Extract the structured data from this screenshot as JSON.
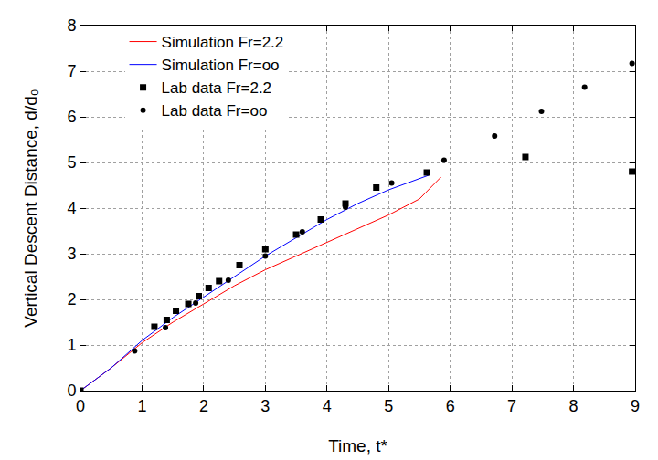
{
  "chart_data": {
    "type": "line",
    "x_label": "Time, t*",
    "y_label": "Vertical Descent Distance, d/d₀",
    "xlim": [
      0,
      9
    ],
    "ylim": [
      0,
      8
    ],
    "xticks": [
      0,
      1,
      2,
      3,
      4,
      5,
      6,
      7,
      8,
      9
    ],
    "yticks": [
      0,
      1,
      2,
      3,
      4,
      5,
      6,
      7,
      8
    ],
    "grid": true,
    "legend": "upper left",
    "series": [
      {
        "name": "Simulation Fr=2.2",
        "type": "line",
        "color": "#ff0000",
        "line_style": "solid",
        "x": [
          0,
          0.5,
          1,
          1.5,
          2,
          2.5,
          3,
          3.5,
          4,
          4.5,
          5,
          5.5,
          5.85
        ],
        "values": [
          0,
          0.5,
          1.05,
          1.5,
          1.9,
          2.3,
          2.65,
          2.95,
          3.25,
          3.55,
          3.85,
          4.2,
          4.68
        ]
      },
      {
        "name": "Simulation Fr=oo",
        "type": "line",
        "color": "#0000ff",
        "line_style": "solid",
        "x": [
          0,
          0.5,
          1,
          1.5,
          2,
          2.5,
          3,
          3.5,
          4,
          4.5,
          5,
          5.65
        ],
        "values": [
          0,
          0.5,
          1.1,
          1.6,
          2.05,
          2.5,
          2.95,
          3.35,
          3.75,
          4.1,
          4.4,
          4.72
        ]
      },
      {
        "name": "Lab data Fr=2.2",
        "type": "scatter",
        "color": "#000000",
        "marker": "square",
        "x": [
          0,
          1.2,
          1.4,
          1.55,
          1.75,
          1.92,
          2.08,
          2.25,
          2.58,
          3.0,
          3.5,
          3.9,
          4.3,
          4.8,
          5.62,
          7.22,
          8.95
        ],
        "values": [
          0,
          1.4,
          1.55,
          1.75,
          1.9,
          2.07,
          2.25,
          2.4,
          2.75,
          3.1,
          3.42,
          3.75,
          4.1,
          4.45,
          4.78,
          5.12,
          4.8
        ]
      },
      {
        "name": "Lab data Fr=oo",
        "type": "scatter",
        "color": "#000000",
        "marker": "circle",
        "x": [
          0,
          0.88,
          1.38,
          1.87,
          2.4,
          3.0,
          3.6,
          4.3,
          5.05,
          5.9,
          6.72,
          7.48,
          8.18,
          8.95
        ],
        "values": [
          0,
          0.87,
          1.38,
          1.92,
          2.42,
          2.95,
          3.48,
          4.02,
          4.55,
          5.05,
          5.58,
          6.12,
          6.65,
          7.17
        ]
      }
    ]
  }
}
